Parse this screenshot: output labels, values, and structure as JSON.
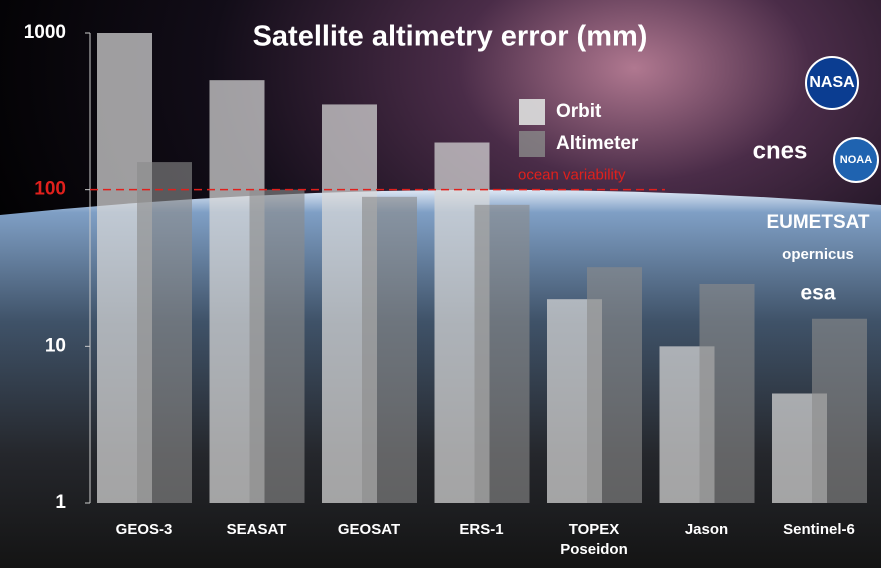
{
  "chart_data": {
    "type": "bar",
    "title": "Satellite altimetry error (mm)",
    "categories": [
      "GEOS-3",
      "SEASAT",
      "GEOSAT",
      "ERS-1",
      "TOPEX Poseidon",
      "Jason",
      "Sentinel-6"
    ],
    "series": [
      {
        "name": "Orbit",
        "color": "#d8d8d8",
        "values": [
          1000,
          500,
          350,
          200,
          20,
          10,
          5
        ]
      },
      {
        "name": "Altimeter",
        "color": "#8a8a8a",
        "values": [
          150,
          100,
          90,
          80,
          32,
          25,
          15
        ]
      }
    ],
    "log_scale": true,
    "ylim": [
      1,
      1000
    ],
    "yticks": [
      1,
      10,
      100,
      1000
    ],
    "reference": {
      "value": 100,
      "label": "ocean variability",
      "color": "#e0201c"
    },
    "legend": "top",
    "logos": [
      "NASA",
      "cnes",
      "NOAA",
      "EUMETSAT",
      "opernicus",
      "esa"
    ]
  }
}
